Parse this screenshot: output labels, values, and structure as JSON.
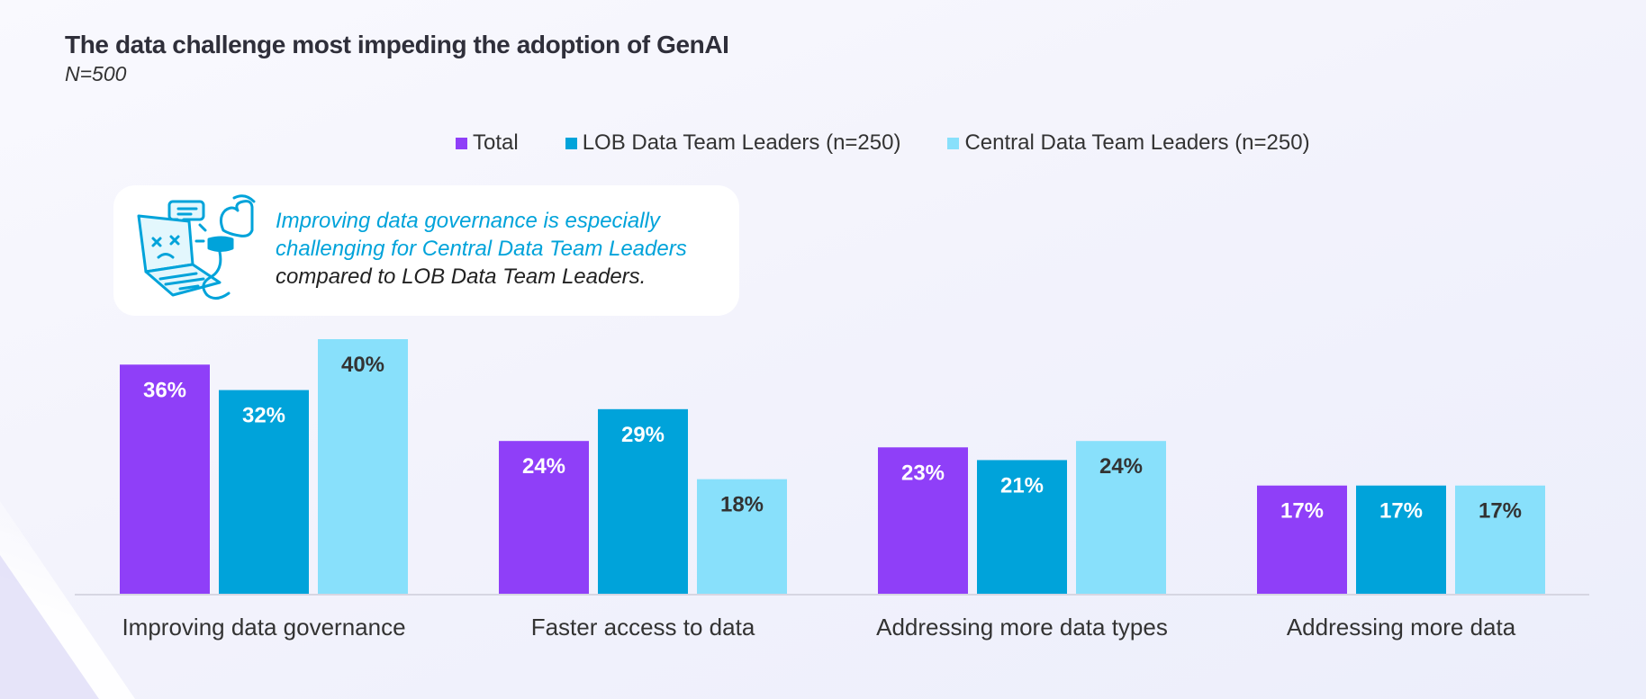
{
  "title": "The data challenge most impeding the adoption of GenAI",
  "subtitle": "N=500",
  "legend": [
    {
      "label": "Total",
      "color": "#8f3ff8"
    },
    {
      "label": "LOB Data Team Leaders (n=250)",
      "color": "#00a3da"
    },
    {
      "label": "Central Data Team Leaders (n=250)",
      "color": "#88e0fb"
    }
  ],
  "callout": {
    "line1": "Improving data governance is especially",
    "line2": "challenging for Central Data Team Leaders",
    "line3": "compared to LOB Data Team Leaders.",
    "icon": "broken-laptop-icon"
  },
  "chart_data": {
    "type": "bar",
    "title": "The data challenge most impeding the adoption of GenAI",
    "subtitle": "N=500",
    "categories": [
      "Improving data governance",
      "Faster access to data",
      "Addressing more data types",
      "Addressing more data"
    ],
    "series": [
      {
        "name": "Total",
        "values": [
          36,
          24,
          23,
          17
        ],
        "labels": [
          "36%",
          "24%",
          "23%",
          "17%"
        ],
        "color": "#8f3ff8",
        "label_color": "#ffffff"
      },
      {
        "name": "LOB Data Team Leaders (n=250)",
        "values": [
          32,
          29,
          21,
          17
        ],
        "labels": [
          "32%",
          "29%",
          "21%",
          "17%"
        ],
        "color": "#00a3da",
        "label_color": "#ffffff"
      },
      {
        "name": "Central Data Team Leaders (n=250)",
        "values": [
          40,
          18,
          24,
          17
        ],
        "labels": [
          "40%",
          "18%",
          "24%",
          "17%"
        ],
        "color": "#88e0fb",
        "label_color": "#333333"
      }
    ],
    "ylim": [
      0,
      40
    ],
    "unit": "%",
    "grid": false,
    "legend_position": "top-center",
    "xlabel": "",
    "ylabel": ""
  }
}
